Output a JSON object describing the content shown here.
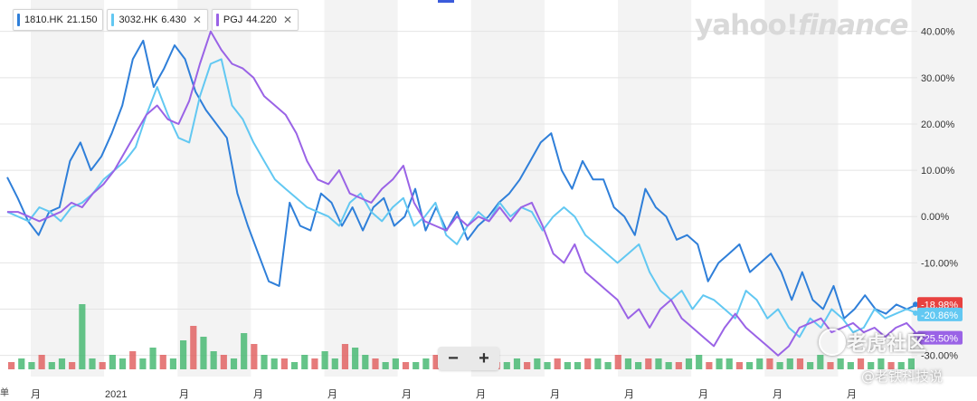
{
  "legend": [
    {
      "symbol": "1810.HK",
      "value": "21.150",
      "color": "#2f7fd9",
      "closable": false
    },
    {
      "symbol": "3032.HK",
      "value": "6.430",
      "color": "#62c8f2",
      "closable": true
    },
    {
      "symbol": "PGJ",
      "value": "44.220",
      "color": "#9a63e6",
      "closable": true
    }
  ],
  "watermark": {
    "left": "yahoo!",
    "right": "finance"
  },
  "zoom": {
    "minus": "−",
    "plus": "+"
  },
  "overlay": {
    "brand": "老虎社区",
    "author": "@老铁科技说"
  },
  "corner_label": "单",
  "chart_data": {
    "type": "line",
    "ylim": [
      -33,
      46
    ],
    "yticks": [
      40,
      30,
      20,
      10,
      0,
      -10,
      -20,
      -30
    ],
    "ytick_labels": [
      "40.00%",
      "30.00%",
      "20.00%",
      "10.00%",
      "0.00%",
      "-10.00%",
      "-20.00%",
      "-30.00%"
    ],
    "x_labels": [
      "月",
      "2021",
      "月",
      "月",
      "月",
      "月",
      "月",
      "月",
      "月",
      "月",
      "月",
      "月"
    ],
    "last_value_labels": [
      {
        "text": "-18.98%",
        "color": "#e8413f",
        "value": -18.98
      },
      {
        "text": "-20.86%",
        "color": "#62c8f2",
        "value": -20.86
      },
      {
        "text": "-25.50%",
        "color": "#9a63e6",
        "value": -25.5
      }
    ],
    "series": [
      {
        "name": "1810.HK",
        "color": "#2f7fd9",
        "values": [
          8.5,
          4,
          -1,
          -4,
          1,
          2,
          12,
          16,
          10,
          13,
          18,
          24,
          34,
          38,
          28,
          32,
          37,
          34,
          27,
          23,
          20,
          17,
          5,
          -2,
          -8,
          -14,
          -15,
          3,
          -2,
          -3,
          5,
          3,
          -2,
          2,
          -3,
          2,
          4,
          -2,
          0,
          6,
          -3,
          2,
          -3,
          1,
          -5,
          -2,
          0,
          3,
          5,
          8,
          12,
          16,
          18,
          10,
          6,
          12,
          8,
          8,
          2,
          0,
          -4,
          6,
          2,
          0,
          -5,
          -4,
          -6,
          -14,
          -10,
          -8,
          -6,
          -12,
          -10,
          -8,
          -12,
          -18,
          -12,
          -18,
          -20,
          -15,
          -22,
          -20,
          -17,
          -20,
          -21,
          -19,
          -20,
          -18.98
        ]
      },
      {
        "name": "3032.HK",
        "color": "#62c8f2",
        "values": [
          1,
          0,
          -1,
          2,
          1,
          -1,
          2,
          3,
          5,
          8,
          10,
          12,
          15,
          22,
          28,
          22,
          17,
          16,
          26,
          33,
          34,
          24,
          21,
          16,
          12,
          8,
          6,
          4,
          2,
          1,
          0,
          -2,
          3,
          5,
          1,
          -1,
          2,
          4,
          -2,
          0,
          3,
          -4,
          -6,
          -2,
          1,
          -1,
          3,
          0,
          2,
          1,
          -3,
          0,
          2,
          0,
          -4,
          -6,
          -8,
          -10,
          -8,
          -6,
          -12,
          -16,
          -18,
          -16,
          -20,
          -17,
          -18,
          -20,
          -22,
          -16,
          -18,
          -22,
          -20,
          -24,
          -26,
          -22,
          -24,
          -20,
          -22,
          -25,
          -24,
          -20,
          -22,
          -21,
          -20,
          -20.86
        ]
      },
      {
        "name": "PGJ",
        "color": "#9a63e6",
        "values": [
          1,
          1,
          0,
          -1,
          0,
          1,
          3,
          2,
          5,
          7,
          10,
          14,
          18,
          22,
          24,
          21,
          20,
          25,
          33,
          40,
          36,
          33,
          32,
          30,
          26,
          24,
          22,
          18,
          12,
          8,
          7,
          10,
          5,
          4,
          3,
          6,
          8,
          11,
          3,
          -1,
          -2,
          -3,
          0,
          -2,
          0,
          -1,
          2,
          -1,
          2,
          3,
          -2,
          -8,
          -10,
          -6,
          -12,
          -14,
          -16,
          -18,
          -22,
          -20,
          -24,
          -20,
          -18,
          -22,
          -24,
          -26,
          -28,
          -24,
          -21,
          -24,
          -26,
          -28,
          -30,
          -28,
          -24,
          -23,
          -22,
          -25,
          -24,
          -23,
          -25,
          -24,
          -26,
          -24,
          -23,
          -25.5
        ]
      }
    ],
    "volume": [
      2,
      3,
      2,
      4,
      2,
      3,
      2,
      18,
      3,
      2,
      4,
      3,
      5,
      3,
      6,
      4,
      3,
      8,
      12,
      9,
      5,
      4,
      3,
      10,
      7,
      4,
      3,
      3,
      2,
      4,
      3,
      5,
      3,
      7,
      6,
      4,
      3,
      2,
      3,
      2,
      2,
      3,
      4,
      3,
      2,
      2,
      3,
      2,
      2,
      2,
      3,
      2,
      3,
      2,
      3,
      2,
      2,
      3,
      3,
      2,
      4,
      3,
      2,
      3,
      3,
      2,
      2,
      3,
      4,
      2,
      3,
      3,
      2,
      2,
      3,
      3,
      2,
      3,
      3,
      2,
      4,
      2,
      3,
      2,
      3,
      2,
      3,
      2,
      2,
      3
    ]
  }
}
